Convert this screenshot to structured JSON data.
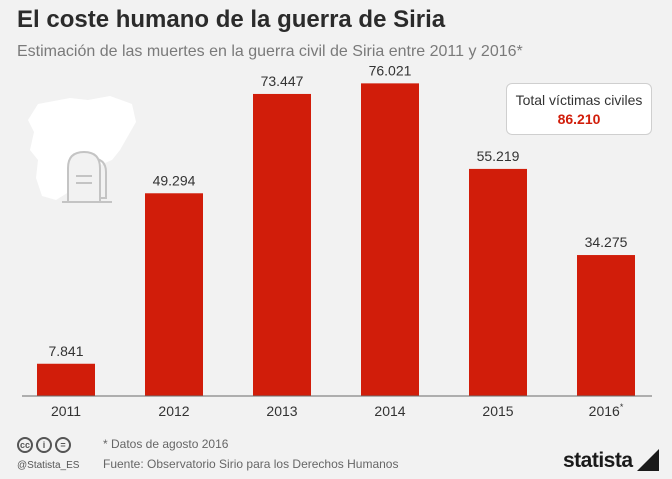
{
  "header": {
    "title": "El coste humano de la guerra de Siria",
    "subtitle": "Estimación de las muertes en la guerra civil de Siria entre 2011 y 2016*"
  },
  "total_box": {
    "label": "Total víctimas civiles",
    "value": "86.210",
    "value_color": "#d11d0a"
  },
  "chart_data": {
    "type": "bar",
    "title": "El coste humano de la guerra de Siria",
    "categories": [
      "2011",
      "2012",
      "2013",
      "2014",
      "2015",
      "2016"
    ],
    "category_suffixes": [
      "",
      "",
      "",
      "",
      "",
      "*"
    ],
    "values": [
      7841,
      49294,
      73447,
      76021,
      55219,
      34275
    ],
    "value_labels": [
      "7.841",
      "49.294",
      "73.447",
      "76.021",
      "55.219",
      "34.275"
    ],
    "xlabel": "",
    "ylabel": "",
    "ylim": [
      0,
      80000
    ],
    "grid": false,
    "bar_color": "#d11d0a"
  },
  "footer": {
    "note": "* Datos de agosto 2016",
    "source": "Fuente: Observatorio Sirio para los Derechos Humanos",
    "handle": "@Statista_ES",
    "logo": "statista",
    "cc_icons": [
      "cc-icon",
      "by-icon",
      "nd-icon"
    ],
    "cc_glyphs": [
      "cc",
      "i",
      "="
    ]
  }
}
